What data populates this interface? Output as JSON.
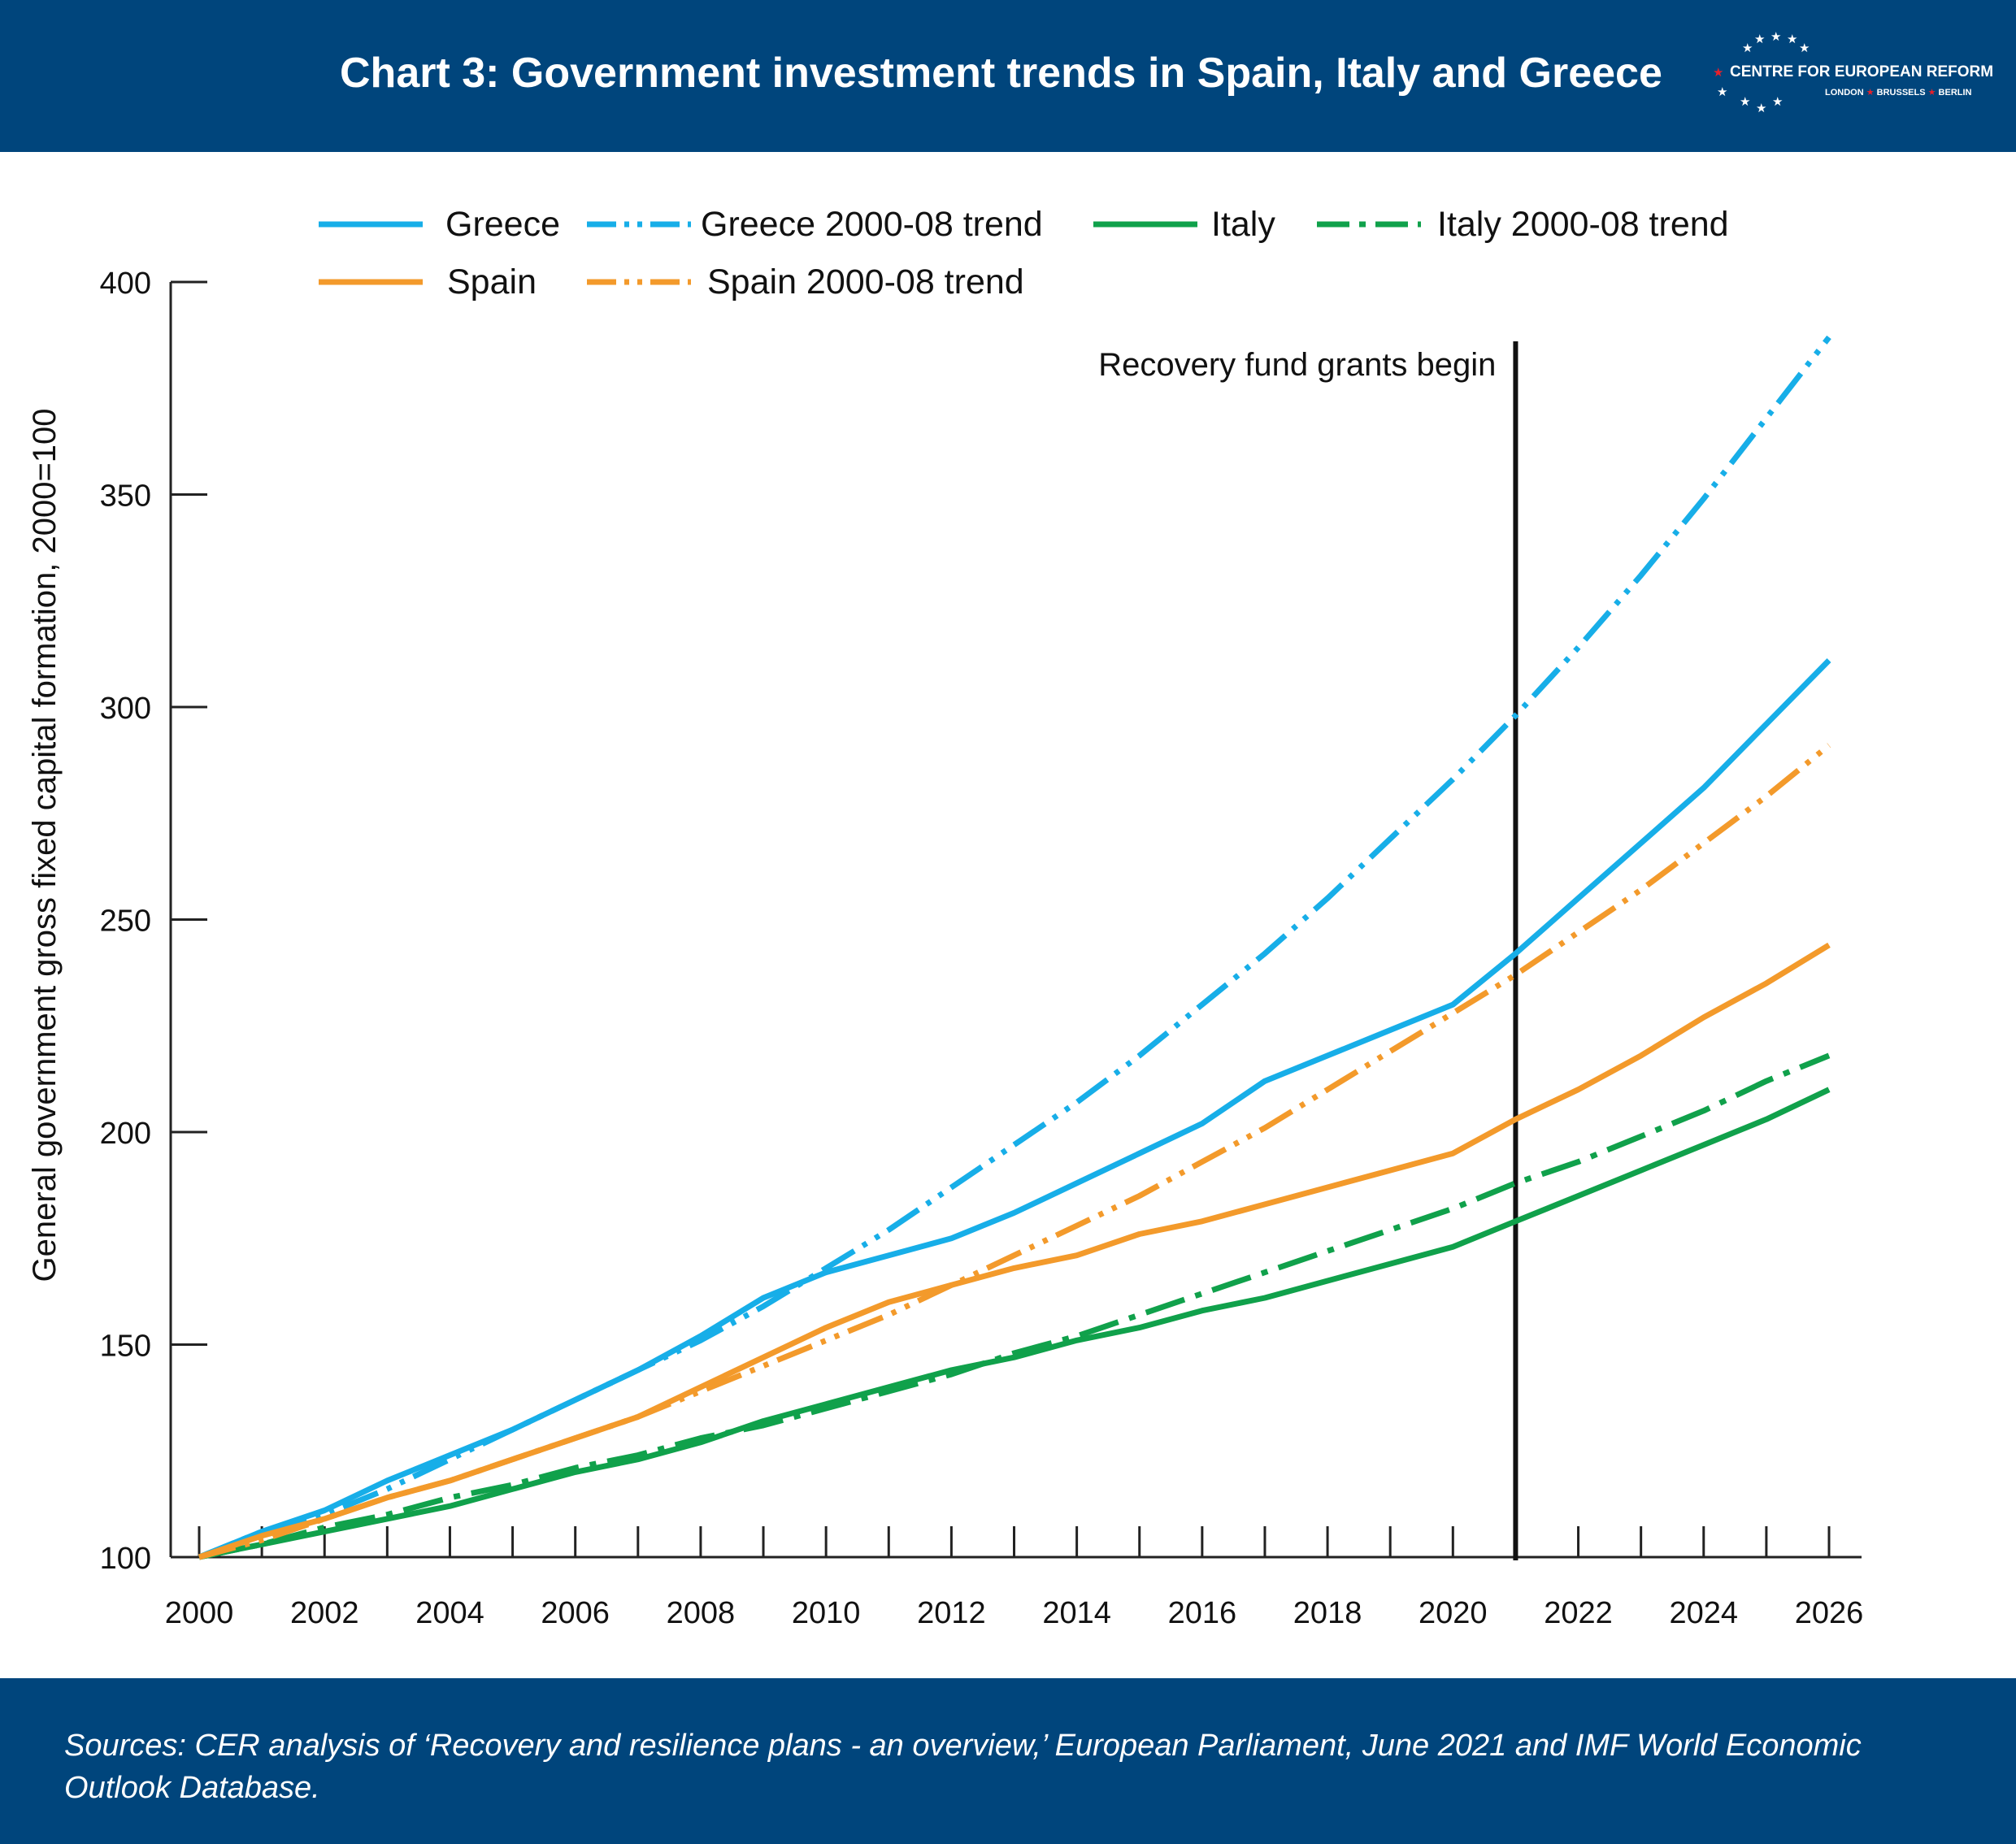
{
  "header": {
    "title": "Chart 3: Government investment trends in Spain, Italy and Greece",
    "logo": {
      "name": "CENTRE FOR EUROPEAN REFORM",
      "cities": [
        "LONDON",
        "BRUSSELS",
        "BERLIN"
      ]
    }
  },
  "footer": {
    "source": "Sources: CER analysis of ‘Recovery and resilience plans - an overview,’ European Parliament, June 2021 and IMF World Economic Outlook Database."
  },
  "colors": {
    "header_bg": "#00457c",
    "greece": "#17aee8",
    "spain": "#f39a2b",
    "italy": "#10a14b",
    "axis": "#222222"
  },
  "chart_data": {
    "type": "line",
    "title": "Chart 3: Government investment trends in Spain, Italy and Greece",
    "xlabel": "",
    "ylabel": "General government gross fixed capital formation, 2000=100",
    "xlim": [
      2000,
      2026
    ],
    "ylim": [
      100,
      400
    ],
    "x_ticks": [
      2000,
      2002,
      2004,
      2006,
      2008,
      2010,
      2012,
      2014,
      2016,
      2018,
      2020,
      2022,
      2024,
      2026
    ],
    "y_ticks": [
      100,
      150,
      200,
      250,
      300,
      350,
      400
    ],
    "grid": false,
    "legend_position": "top",
    "annotations": [
      {
        "text": "Recovery fund grants begin",
        "x": 2021,
        "type": "vertical-line"
      }
    ],
    "x": [
      2000,
      2001,
      2002,
      2003,
      2004,
      2005,
      2006,
      2007,
      2008,
      2009,
      2010,
      2011,
      2012,
      2013,
      2014,
      2015,
      2016,
      2017,
      2018,
      2019,
      2020,
      2021,
      2022,
      2023,
      2024,
      2025,
      2026
    ],
    "series": [
      {
        "name": "Greece",
        "color": "#17aee8",
        "style": "solid",
        "values": [
          100,
          106,
          111,
          118,
          124,
          130,
          137,
          144,
          152,
          161,
          167,
          171,
          175,
          181,
          188,
          195,
          202,
          212,
          218,
          224,
          230,
          242,
          255,
          268,
          281,
          296,
          311
        ]
      },
      {
        "name": "Greece 2000-08 trend",
        "color": "#17aee8",
        "style": "dash-dot-dot",
        "values": [
          100,
          106,
          110,
          116,
          123,
          130,
          137,
          144,
          151,
          159,
          168,
          177,
          187,
          197,
          207,
          218,
          230,
          242,
          255,
          269,
          283,
          298,
          314,
          331,
          349,
          368,
          387
        ]
      },
      {
        "name": "Italy",
        "color": "#10a14b",
        "style": "solid",
        "values": [
          100,
          103,
          106,
          109,
          112,
          116,
          120,
          123,
          127,
          132,
          136,
          140,
          144,
          147,
          151,
          154,
          158,
          161,
          165,
          169,
          173,
          179,
          185,
          191,
          197,
          203,
          210
        ]
      },
      {
        "name": "Italy 2000-08 trend",
        "color": "#10a14b",
        "style": "dash-dot",
        "values": [
          100,
          103,
          107,
          110,
          114,
          117,
          121,
          124,
          128,
          131,
          135,
          139,
          143,
          148,
          152,
          157,
          162,
          167,
          172,
          177,
          182,
          188,
          193,
          199,
          205,
          212,
          218
        ]
      },
      {
        "name": "Spain",
        "color": "#f39a2b",
        "style": "solid",
        "values": [
          100,
          105,
          109,
          114,
          118,
          123,
          128,
          133,
          140,
          147,
          154,
          160,
          164,
          168,
          171,
          176,
          179,
          183,
          187,
          191,
          195,
          203,
          210,
          218,
          227,
          235,
          244
        ]
      },
      {
        "name": "Spain 2000-08 trend",
        "color": "#f39a2b",
        "style": "dash-dot-dot",
        "values": [
          100,
          104,
          109,
          114,
          118,
          123,
          128,
          133,
          139,
          145,
          151,
          157,
          164,
          171,
          178,
          185,
          193,
          201,
          210,
          219,
          228,
          237,
          247,
          257,
          268,
          279,
          291
        ]
      }
    ]
  }
}
